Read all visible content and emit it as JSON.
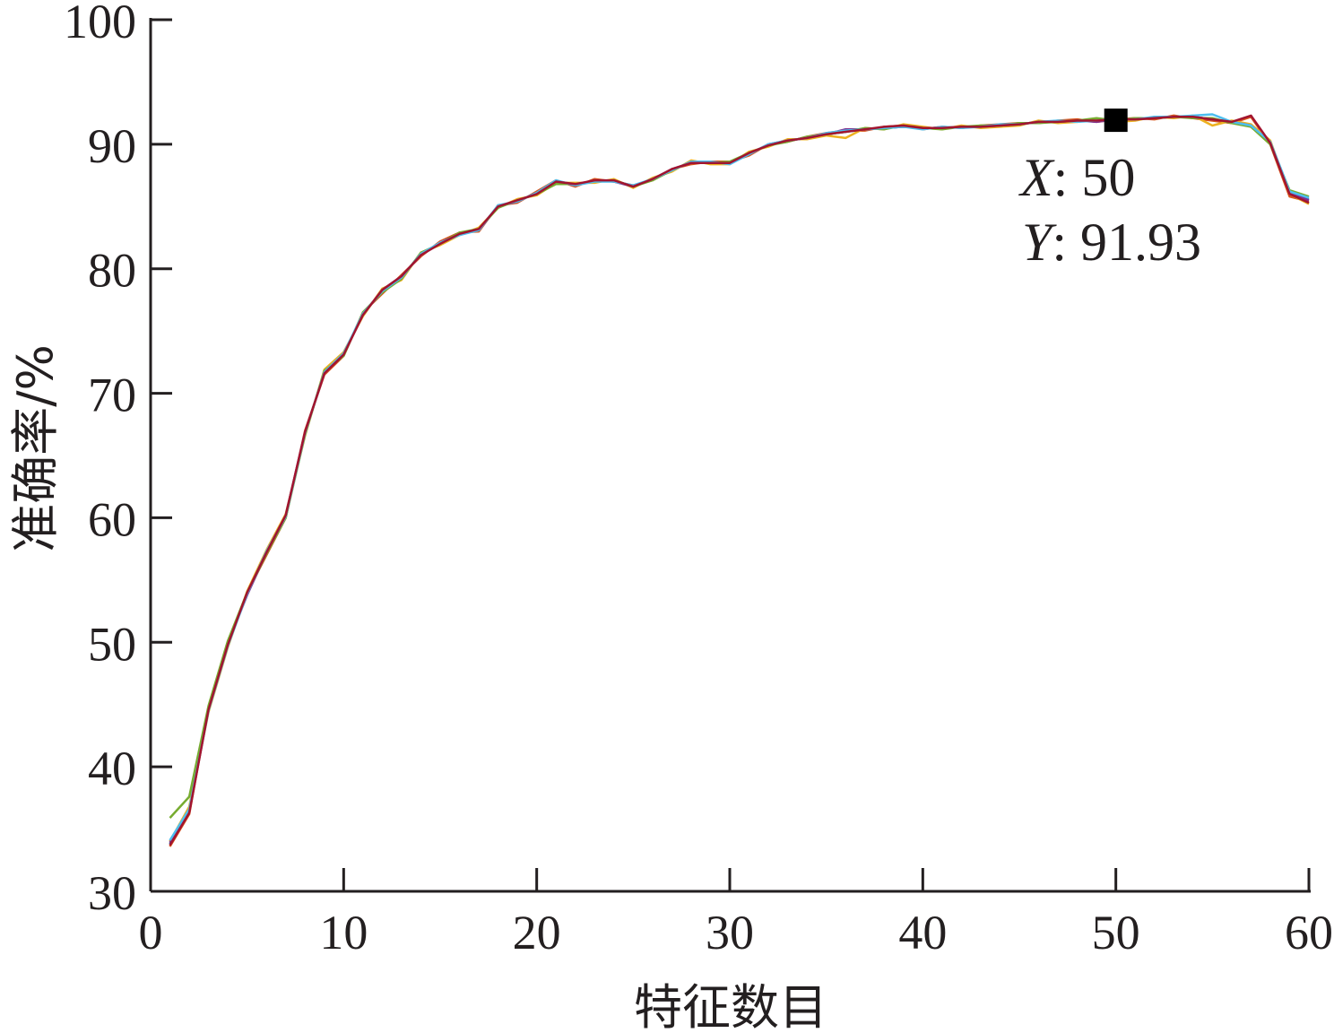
{
  "chart_data": {
    "type": "line",
    "title": "",
    "xlabel": "特征数目",
    "ylabel": "准确率/%",
    "xlim": [
      0,
      60
    ],
    "ylim": [
      30,
      100
    ],
    "xticks": [
      0,
      10,
      20,
      30,
      40,
      50,
      60
    ],
    "yticks": [
      30,
      40,
      50,
      60,
      70,
      80,
      90,
      100
    ],
    "grid": false,
    "legend": "none",
    "x": [
      1,
      2,
      3,
      4,
      5,
      6,
      7,
      8,
      9,
      10,
      11,
      12,
      13,
      14,
      15,
      16,
      17,
      18,
      19,
      20,
      21,
      22,
      23,
      24,
      25,
      26,
      27,
      28,
      29,
      30,
      31,
      32,
      33,
      34,
      35,
      36,
      37,
      38,
      39,
      40,
      41,
      42,
      43,
      44,
      45,
      46,
      47,
      48,
      49,
      50,
      51,
      52,
      53,
      54,
      55,
      56,
      57,
      58,
      59,
      60
    ],
    "series": [
      {
        "color": "#1f77b4",
        "values": [
          33.8,
          36.5,
          44.6,
          49.8,
          53.9,
          57.3,
          60.1,
          66.8,
          71.7,
          73.1,
          76.4,
          78.2,
          79.3,
          81.2,
          82.0,
          82.8,
          83.2,
          85.0,
          85.5,
          86.0,
          87.0,
          86.8,
          87.0,
          87.1,
          86.6,
          87.2,
          87.9,
          88.6,
          88.5,
          88.5,
          89.3,
          89.9,
          90.3,
          90.5,
          90.8,
          91.0,
          91.2,
          91.3,
          91.4,
          91.3,
          91.3,
          91.4,
          91.4,
          91.5,
          91.6,
          91.8,
          91.8,
          91.9,
          91.9,
          91.9,
          92.0,
          92.1,
          92.2,
          92.2,
          92.0,
          91.8,
          91.5,
          90.2,
          86.2,
          85.6
        ]
      },
      {
        "color": "#d95319",
        "values": [
          33.6,
          36.2,
          44.8,
          50.0,
          54.0,
          57.0,
          60.0,
          67.0,
          71.5,
          73.0,
          76.5,
          78.0,
          79.5,
          81.0,
          82.2,
          82.9,
          83.0,
          85.1,
          85.3,
          86.2,
          87.1,
          86.6,
          87.2,
          87.0,
          86.7,
          87.1,
          88.0,
          88.4,
          88.6,
          88.6,
          89.1,
          90.0,
          90.2,
          90.6,
          90.9,
          91.1,
          91.1,
          91.4,
          91.5,
          91.2,
          91.4,
          91.3,
          91.5,
          91.6,
          91.7,
          91.7,
          91.9,
          92.0,
          91.8,
          92.0,
          92.1,
          92.0,
          92.3,
          92.1,
          91.9,
          91.7,
          92.2,
          90.0,
          85.8,
          85.4
        ]
      },
      {
        "color": "#edb120",
        "values": [
          34.0,
          36.8,
          44.4,
          49.6,
          54.1,
          57.4,
          60.3,
          66.6,
          71.9,
          73.3,
          76.2,
          78.4,
          79.1,
          81.3,
          81.9,
          82.7,
          83.3,
          84.9,
          85.6,
          85.9,
          86.9,
          86.9,
          86.9,
          87.2,
          86.5,
          87.3,
          87.8,
          88.7,
          88.4,
          88.4,
          89.4,
          89.8,
          90.4,
          90.4,
          90.7,
          90.5,
          91.3,
          91.2,
          91.6,
          91.4,
          91.2,
          91.5,
          91.3,
          91.4,
          91.5,
          91.9,
          91.7,
          91.8,
          92.0,
          91.8,
          91.9,
          92.2,
          92.1,
          92.3,
          91.5,
          91.9,
          91.6,
          90.3,
          86.0,
          85.2
        ]
      },
      {
        "color": "#7e2f8e",
        "values": [
          33.9,
          36.4,
          44.7,
          49.9,
          53.8,
          57.2,
          60.2,
          66.9,
          71.6,
          73.2,
          76.3,
          78.3,
          79.4,
          81.1,
          82.1,
          82.8,
          83.1,
          85.0,
          85.4,
          86.1,
          87.0,
          86.7,
          87.1,
          87.0,
          86.6,
          87.2,
          88.0,
          88.5,
          88.5,
          88.5,
          89.2,
          90.0,
          90.3,
          90.5,
          90.8,
          91.2,
          91.2,
          91.3,
          91.4,
          91.3,
          91.3,
          91.4,
          91.4,
          91.5,
          91.6,
          91.8,
          91.8,
          91.9,
          91.8,
          92.0,
          92.0,
          92.1,
          92.2,
          92.2,
          92.0,
          91.8,
          91.5,
          90.1,
          86.1,
          85.5
        ]
      },
      {
        "color": "#77ac30",
        "values": [
          35.9,
          37.6,
          44.9,
          50.1,
          54.0,
          57.1,
          60.0,
          66.7,
          71.8,
          73.0,
          76.5,
          78.1,
          79.2,
          81.3,
          82.0,
          82.9,
          83.2,
          84.9,
          85.5,
          86.0,
          86.8,
          86.8,
          87.0,
          87.1,
          86.6,
          87.1,
          87.9,
          88.6,
          88.5,
          88.6,
          89.3,
          89.9,
          90.2,
          90.6,
          90.8,
          91.0,
          91.3,
          91.2,
          91.5,
          91.3,
          91.2,
          91.4,
          91.5,
          91.5,
          91.7,
          91.7,
          91.8,
          91.9,
          92.1,
          91.9,
          92.1,
          92.1,
          92.2,
          92.1,
          92.1,
          91.7,
          91.4,
          90.0,
          86.3,
          85.8
        ]
      },
      {
        "color": "#4dbeee",
        "values": [
          34.1,
          36.6,
          44.5,
          49.7,
          53.9,
          57.3,
          60.1,
          66.8,
          71.7,
          73.2,
          76.4,
          78.2,
          79.3,
          81.2,
          82.1,
          82.7,
          83.1,
          85.1,
          85.4,
          86.1,
          87.1,
          86.7,
          87.0,
          87.0,
          86.7,
          87.2,
          87.9,
          88.6,
          88.6,
          88.4,
          89.2,
          90.0,
          90.3,
          90.5,
          90.9,
          91.1,
          91.2,
          91.3,
          91.4,
          91.2,
          91.4,
          91.3,
          91.4,
          91.6,
          91.6,
          91.8,
          91.9,
          91.8,
          91.9,
          92.0,
          92.0,
          92.2,
          92.2,
          92.3,
          92.4,
          91.8,
          91.5,
          90.2,
          86.2,
          85.7
        ]
      },
      {
        "color": "#a2142f",
        "values": [
          33.7,
          36.3,
          44.6,
          49.8,
          54.0,
          57.2,
          60.2,
          66.9,
          71.6,
          73.1,
          76.3,
          78.3,
          79.4,
          81.1,
          82.0,
          82.8,
          83.2,
          85.0,
          85.5,
          86.0,
          87.0,
          86.8,
          87.1,
          87.1,
          86.6,
          87.2,
          88.0,
          88.5,
          88.5,
          88.5,
          89.3,
          89.9,
          90.3,
          90.5,
          90.8,
          91.0,
          91.2,
          91.4,
          91.5,
          91.3,
          91.3,
          91.4,
          91.4,
          91.5,
          91.6,
          91.8,
          91.8,
          91.9,
          91.9,
          92.0,
          92.0,
          92.1,
          92.2,
          92.2,
          92.0,
          91.8,
          92.3,
          90.1,
          86.0,
          85.3
        ]
      }
    ],
    "datatip": {
      "x_key": "X",
      "y_key": "Y",
      "x": 50,
      "y": 91.93,
      "x_text": "50",
      "y_text": "91.93",
      "marker_color": "#000000"
    }
  }
}
